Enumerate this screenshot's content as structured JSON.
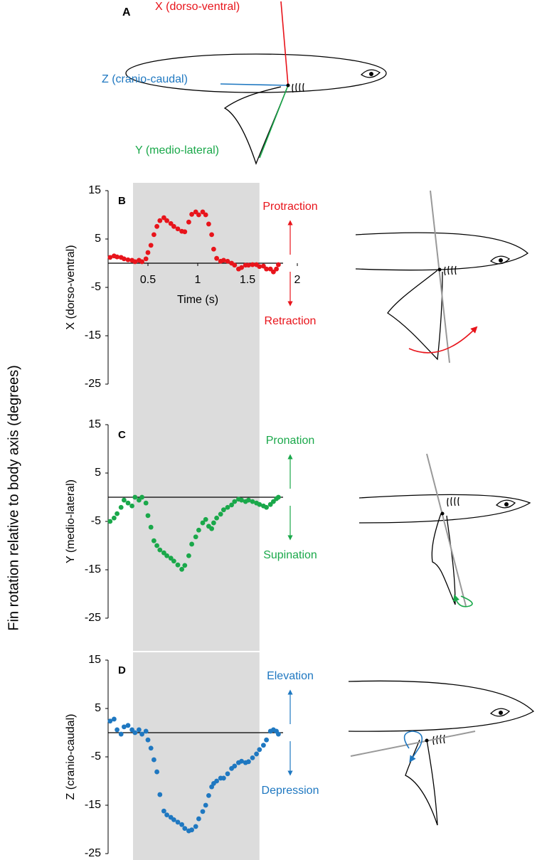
{
  "figure": {
    "ylabel": "Fin rotation relative to body axis (degrees)",
    "panel_a": {
      "label": "A",
      "x_axis": "X (dorso-ventral)",
      "z_axis": "Z (cranio-caudal)",
      "y_axis": "Y (medio-lateral)"
    }
  },
  "chart_data": [
    {
      "type": "scatter",
      "panel": "B",
      "ylabel": "X (dorso-ventral)",
      "xlabel": "Time (s)",
      "color": "#e8141b",
      "up_label": "Protraction",
      "down_label": "Retraction",
      "xlim": [
        0.1,
        2.1
      ],
      "xticks": [
        0.5,
        1,
        1.5,
        2
      ],
      "ylim": [
        -25,
        15
      ],
      "yticks": [
        15,
        5,
        -5,
        -15,
        -25
      ],
      "highlight": [
        0.35,
        1.62
      ],
      "x": [
        0.12,
        0.16,
        0.19,
        0.23,
        0.26,
        0.3,
        0.34,
        0.37,
        0.41,
        0.44,
        0.48,
        0.5,
        0.53,
        0.56,
        0.59,
        0.62,
        0.66,
        0.69,
        0.73,
        0.76,
        0.8,
        0.84,
        0.87,
        0.91,
        0.94,
        0.98,
        1.01,
        1.05,
        1.08,
        1.11,
        1.14,
        1.16,
        1.19,
        1.23,
        1.26,
        1.3,
        1.34,
        1.37,
        1.41,
        1.44,
        1.48,
        1.51,
        1.55,
        1.59,
        1.62,
        1.66,
        1.69,
        1.73,
        1.76,
        1.79,
        1.81
      ],
      "values": [
        1.2,
        1.5,
        1.3,
        1.2,
        0.9,
        0.7,
        0.6,
        0.3,
        0.6,
        0.3,
        0.9,
        2.2,
        3.7,
        5.9,
        7.6,
        8.8,
        9.4,
        8.8,
        8.2,
        7.6,
        7.1,
        6.6,
        6.5,
        8.5,
        10.1,
        10.6,
        10,
        10.6,
        10,
        8.1,
        5.9,
        2.9,
        1,
        0.4,
        0.6,
        0.4,
        0,
        -0.4,
        -1.2,
        -0.9,
        -0.4,
        -0.4,
        -0.3,
        -0.3,
        -0.7,
        -0.6,
        -1.2,
        -1.2,
        -1.8,
        -1.2,
        -0.3
      ]
    },
    {
      "type": "scatter",
      "panel": "C",
      "ylabel": "Y (medio-lateral)",
      "color": "#1aa84a",
      "up_label": "Pronation",
      "down_label": "Supination",
      "xlim": [
        0.1,
        2.1
      ],
      "ylim": [
        -25,
        15
      ],
      "yticks": [
        15,
        5,
        -5,
        -15,
        -25
      ],
      "highlight": [
        0.35,
        1.62
      ],
      "x": [
        0.12,
        0.16,
        0.19,
        0.23,
        0.26,
        0.3,
        0.34,
        0.37,
        0.41,
        0.44,
        0.48,
        0.5,
        0.53,
        0.56,
        0.59,
        0.62,
        0.66,
        0.69,
        0.73,
        0.76,
        0.8,
        0.84,
        0.87,
        0.91,
        0.94,
        0.98,
        1.01,
        1.05,
        1.08,
        1.11,
        1.14,
        1.16,
        1.19,
        1.23,
        1.26,
        1.3,
        1.34,
        1.37,
        1.41,
        1.44,
        1.48,
        1.51,
        1.55,
        1.59,
        1.62,
        1.66,
        1.69,
        1.73,
        1.76,
        1.79,
        1.81
      ],
      "values": [
        -5,
        -4.3,
        -3.4,
        -2.1,
        -0.6,
        -1.2,
        -1.8,
        0,
        -0.6,
        0,
        -1.2,
        -3.8,
        -6.2,
        -9,
        -10,
        -10.9,
        -11.5,
        -12.1,
        -12.6,
        -13.2,
        -14,
        -14.9,
        -14.1,
        -12.1,
        -9.7,
        -8.2,
        -6.8,
        -5.3,
        -4.6,
        -6,
        -6.5,
        -5.3,
        -4.3,
        -3.5,
        -2.6,
        -2.1,
        -1.6,
        -0.9,
        -0.4,
        -0.6,
        -0.9,
        -0.6,
        -0.9,
        -1.2,
        -1.5,
        -1.8,
        -2.1,
        -1.5,
        -0.9,
        -0.3,
        0
      ]
    },
    {
      "type": "scatter",
      "panel": "D",
      "ylabel": "Z (cranio-caudal)",
      "color": "#1f78c1",
      "up_label": "Elevation",
      "down_label": "Depression",
      "xlim": [
        0.1,
        2.1
      ],
      "ylim": [
        -25,
        15
      ],
      "yticks": [
        15,
        5,
        -5,
        -15,
        -25
      ],
      "highlight": [
        0.35,
        1.62
      ],
      "x": [
        0.12,
        0.16,
        0.19,
        0.23,
        0.26,
        0.3,
        0.34,
        0.37,
        0.41,
        0.44,
        0.48,
        0.5,
        0.53,
        0.56,
        0.59,
        0.62,
        0.66,
        0.69,
        0.73,
        0.76,
        0.8,
        0.84,
        0.87,
        0.91,
        0.94,
        0.98,
        1.01,
        1.05,
        1.08,
        1.11,
        1.14,
        1.16,
        1.19,
        1.23,
        1.26,
        1.3,
        1.34,
        1.37,
        1.41,
        1.44,
        1.48,
        1.51,
        1.55,
        1.59,
        1.62,
        1.66,
        1.69,
        1.73,
        1.76,
        1.79,
        1.81
      ],
      "values": [
        2.4,
        2.8,
        0.6,
        -0.3,
        1.2,
        1.5,
        0.6,
        0,
        0.6,
        -0.3,
        0.3,
        -1.5,
        -3.2,
        -5.6,
        -8.1,
        -12.8,
        -16.2,
        -17,
        -17.5,
        -18,
        -18.5,
        -19,
        -19.8,
        -20.3,
        -20.1,
        -19.4,
        -17.8,
        -16.3,
        -15,
        -13,
        -11.2,
        -10.5,
        -10,
        -9.4,
        -9.4,
        -8.5,
        -7.4,
        -6.9,
        -6.2,
        -5.9,
        -6.2,
        -6,
        -5.2,
        -4.4,
        -3.5,
        -2.6,
        -1.5,
        0.3,
        0.6,
        0.3,
        -0.3
      ]
    }
  ]
}
